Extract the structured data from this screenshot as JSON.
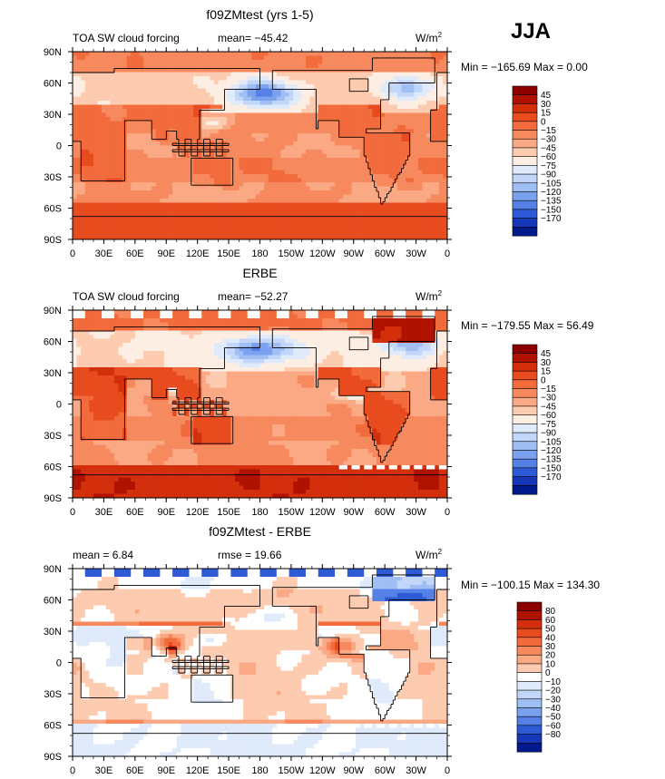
{
  "season": "JJA",
  "chart_data": [
    {
      "type": "heatmap",
      "title": "f09ZMtest (yrs 1-5)",
      "left_label": "TOA SW cloud forcing",
      "center_label": "mean= −45.42",
      "units_label": "W/m",
      "units_sup": "2",
      "minmax_label": "Min = −165.69  Max =    0.00",
      "mean": -45.42,
      "min": -165.69,
      "max": 0.0,
      "x_ticks": [
        "0",
        "30E",
        "60E",
        "90E",
        "120E",
        "150E",
        "180",
        "150W",
        "120W",
        "90W",
        "60W",
        "30W",
        "0"
      ],
      "y_ticks": [
        "90N",
        "60N",
        "30N",
        "0",
        "30S",
        "60S",
        "90S"
      ],
      "xlim": [
        0,
        360
      ],
      "ylim": [
        -90,
        90
      ],
      "colorbar_labels": [
        "45",
        "30",
        "15",
        "0",
        "−15",
        "−30",
        "−45",
        "−60",
        "−75",
        "−90",
        "−105",
        "−120",
        "−135",
        "−150",
        "−170"
      ],
      "colorbar_colors": [
        "#8c0000",
        "#b01200",
        "#d42f0c",
        "#e84c1e",
        "#f26b3c",
        "#f7895e",
        "#fba985",
        "#fdcbb0",
        "#fdeee4",
        "#dfeafb",
        "#c1d6f8",
        "#9ebef4",
        "#7aa1ee",
        "#5580e5",
        "#2f5ad6",
        "#1537b8",
        "#001a8c"
      ],
      "field": "model"
    },
    {
      "type": "heatmap",
      "title": "ERBE",
      "left_label": "TOA SW cloud forcing",
      "center_label": "mean= −52.27",
      "units_label": "W/m",
      "units_sup": "2",
      "minmax_label": "Min = −179.55  Max =   56.49",
      "mean": -52.27,
      "min": -179.55,
      "max": 56.49,
      "x_ticks": [
        "0",
        "30E",
        "60E",
        "90E",
        "120E",
        "150E",
        "180",
        "150W",
        "120W",
        "90W",
        "60W",
        "30W",
        "0"
      ],
      "y_ticks": [
        "90N",
        "60N",
        "30N",
        "0",
        "30S",
        "60S",
        "90S"
      ],
      "xlim": [
        0,
        360
      ],
      "ylim": [
        -90,
        90
      ],
      "colorbar_labels": [
        "45",
        "30",
        "15",
        "0",
        "−15",
        "−30",
        "−45",
        "−60",
        "−75",
        "−90",
        "−105",
        "−120",
        "−135",
        "−150",
        "−170"
      ],
      "colorbar_colors": [
        "#8c0000",
        "#b01200",
        "#d42f0c",
        "#e84c1e",
        "#f26b3c",
        "#f7895e",
        "#fba985",
        "#fdcbb0",
        "#fdeee4",
        "#dfeafb",
        "#c1d6f8",
        "#9ebef4",
        "#7aa1ee",
        "#5580e5",
        "#2f5ad6",
        "#1537b8",
        "#001a8c"
      ],
      "field": "obs"
    },
    {
      "type": "heatmap",
      "title": "f09ZMtest - ERBE",
      "left_label": "mean =     6.84",
      "center_label": "rmse =    19.66",
      "units_label": "W/m",
      "units_sup": "2",
      "minmax_label": "Min = −100.15  Max =  134.30",
      "mean": 6.84,
      "rmse": 19.66,
      "min": -100.15,
      "max": 134.3,
      "x_ticks": [
        "0",
        "30E",
        "60E",
        "90E",
        "120E",
        "150E",
        "180",
        "150W",
        "120W",
        "90W",
        "60W",
        "30W",
        "0"
      ],
      "y_ticks": [
        "90N",
        "60N",
        "30N",
        "0",
        "30S",
        "60S",
        "90S"
      ],
      "xlim": [
        0,
        360
      ],
      "ylim": [
        -90,
        90
      ],
      "colorbar_labels": [
        "80",
        "60",
        "50",
        "40",
        "30",
        "20",
        "10",
        "0",
        "−10",
        "−20",
        "−30",
        "−40",
        "−50",
        "−60",
        "−80"
      ],
      "colorbar_colors": [
        "#8c0000",
        "#b01200",
        "#d42f0c",
        "#e84c1e",
        "#f26b3c",
        "#f7895e",
        "#fba985",
        "#fdcbb0",
        "#ffffff",
        "#dfeafb",
        "#c1d6f8",
        "#9ebef4",
        "#7aa1ee",
        "#5580e5",
        "#2f5ad6",
        "#1537b8",
        "#001a8c"
      ],
      "field": "diff"
    }
  ]
}
